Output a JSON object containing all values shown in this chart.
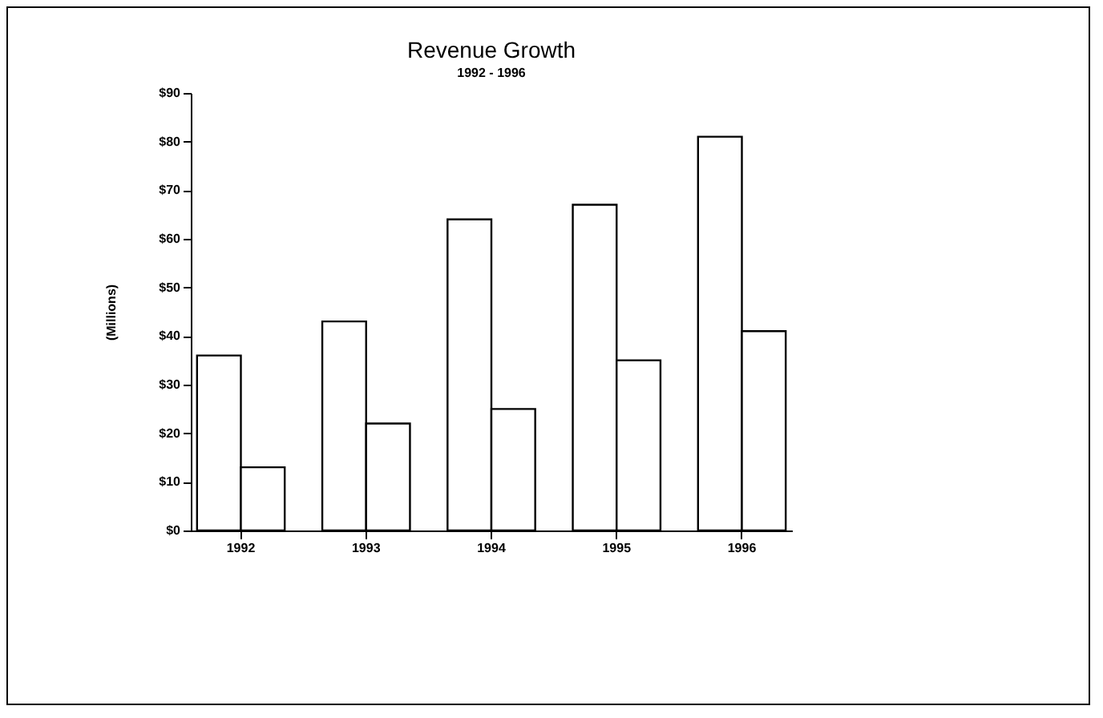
{
  "chart_data": {
    "type": "bar",
    "title": "Revenue Growth",
    "subtitle": "1992 - 1996",
    "ylabel": "(Millions)",
    "categories": [
      "1992",
      "1993",
      "1994",
      "1995",
      "1996"
    ],
    "series": [
      {
        "color": "#ffffff",
        "values": [
          36,
          43,
          64,
          67,
          81
        ]
      },
      {
        "color": "#ffffff",
        "values": [
          13,
          22,
          25,
          35,
          41
        ]
      }
    ],
    "ylim": [
      0,
      90
    ],
    "yticks": [
      {
        "value": 0,
        "label": "$0"
      },
      {
        "value": 10,
        "label": "$10"
      },
      {
        "value": 20,
        "label": "$20"
      },
      {
        "value": 30,
        "label": "$30"
      },
      {
        "value": 40,
        "label": "$40"
      },
      {
        "value": 50,
        "label": "$50"
      },
      {
        "value": 60,
        "label": "$60"
      },
      {
        "value": 70,
        "label": "$70"
      },
      {
        "value": 80,
        "label": "$80"
      },
      {
        "value": 90,
        "label": "$90"
      }
    ],
    "grid": false,
    "legend": false
  }
}
